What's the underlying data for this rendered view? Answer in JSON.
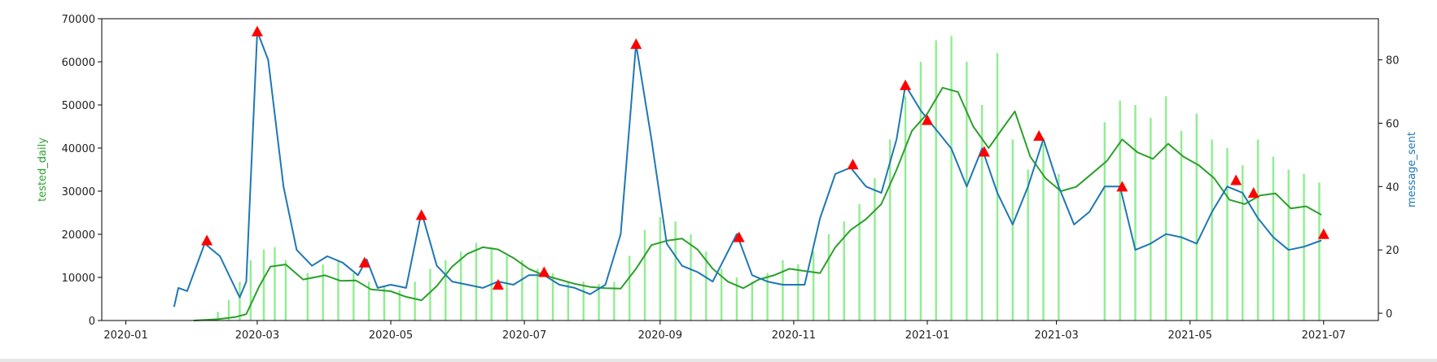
{
  "chart_data": {
    "type": "bar+line",
    "title": "",
    "ylabel_left": "tested_daily",
    "ylabel_right": "message_sent",
    "xlim": [
      "2019-12-21",
      "2021-07-26"
    ],
    "ylim_left": [
      0,
      70000
    ],
    "ylim_right": [
      -2.3,
      93
    ],
    "y_ticks_left": [
      0,
      10000,
      20000,
      30000,
      40000,
      50000,
      60000,
      70000
    ],
    "y_ticks_right": [
      0,
      20,
      40,
      60,
      80
    ],
    "x_ticks": [
      {
        "label": "2020-01",
        "date": "2020-01-01"
      },
      {
        "label": "2020-03",
        "date": "2020-03-01"
      },
      {
        "label": "2020-05",
        "date": "2020-05-01"
      },
      {
        "label": "2020-07",
        "date": "2020-07-01"
      },
      {
        "label": "2020-09",
        "date": "2020-09-01"
      },
      {
        "label": "2020-11",
        "date": "2020-11-01"
      },
      {
        "label": "2021-01",
        "date": "2021-01-01"
      },
      {
        "label": "2021-03",
        "date": "2021-03-01"
      },
      {
        "label": "2021-05",
        "date": "2021-05-01"
      },
      {
        "label": "2021-07",
        "date": "2021-07-01"
      }
    ],
    "colors": {
      "bars": "#90ee90",
      "tested_line": "#2ca02c",
      "message_line": "#1f77b4",
      "markers": "#ff0000",
      "left_label": "#2ca02c",
      "right_label": "#1f77b4"
    },
    "series": [
      {
        "kind": "bar",
        "axis": "left",
        "points": [
          [
            "2020-02-12",
            2000
          ],
          [
            "2020-02-17",
            4800
          ],
          [
            "2020-02-22",
            9000
          ],
          [
            "2020-02-27",
            14000
          ],
          [
            "2020-03-04",
            16500
          ],
          [
            "2020-03-09",
            17000
          ],
          [
            "2020-03-14",
            14000
          ],
          [
            "2020-03-24",
            11000
          ],
          [
            "2020-03-31",
            13000
          ],
          [
            "2020-04-07",
            14000
          ],
          [
            "2020-04-14",
            11000
          ],
          [
            "2020-04-21",
            9000
          ],
          [
            "2020-04-28",
            8000
          ],
          [
            "2020-05-05",
            7000
          ],
          [
            "2020-05-12",
            9000
          ],
          [
            "2020-05-19",
            12000
          ],
          [
            "2020-05-26",
            14000
          ],
          [
            "2020-06-02",
            16000
          ],
          [
            "2020-06-09",
            18000
          ],
          [
            "2020-06-16",
            17000
          ],
          [
            "2020-06-23",
            15000
          ],
          [
            "2020-06-30",
            14000
          ],
          [
            "2020-07-07",
            12000
          ],
          [
            "2020-07-14",
            11000
          ],
          [
            "2020-07-21",
            9000
          ],
          [
            "2020-07-28",
            9000
          ],
          [
            "2020-08-04",
            8500
          ],
          [
            "2020-08-11",
            9000
          ],
          [
            "2020-08-18",
            15000
          ],
          [
            "2020-08-25",
            21000
          ],
          [
            "2020-09-01",
            24000
          ],
          [
            "2020-09-08",
            23000
          ],
          [
            "2020-09-15",
            20000
          ],
          [
            "2020-09-22",
            16000
          ],
          [
            "2020-09-29",
            12000
          ],
          [
            "2020-10-06",
            10000
          ],
          [
            "2020-10-13",
            9000
          ],
          [
            "2020-10-20",
            11000
          ],
          [
            "2020-10-27",
            14000
          ],
          [
            "2020-11-03",
            13000
          ],
          [
            "2020-11-10",
            16000
          ],
          [
            "2020-11-17",
            20000
          ],
          [
            "2020-11-24",
            23000
          ],
          [
            "2020-12-01",
            27000
          ],
          [
            "2020-12-08",
            33000
          ],
          [
            "2020-12-15",
            42000
          ],
          [
            "2020-12-22",
            52000
          ],
          [
            "2020-12-29",
            60000
          ],
          [
            "2021-01-05",
            65000
          ],
          [
            "2021-01-12",
            66000
          ],
          [
            "2021-01-19",
            60000
          ],
          [
            "2021-01-26",
            50000
          ],
          [
            "2021-02-02",
            62000
          ],
          [
            "2021-02-09",
            42000
          ],
          [
            "2021-02-16",
            35000
          ],
          [
            "2021-02-23",
            41000
          ],
          [
            "2021-03-02",
            34000
          ],
          [
            "2021-03-23",
            46000
          ],
          [
            "2021-03-30",
            51000
          ],
          [
            "2021-04-06",
            50000
          ],
          [
            "2021-04-13",
            47000
          ],
          [
            "2021-04-20",
            52000
          ],
          [
            "2021-04-27",
            44000
          ],
          [
            "2021-05-04",
            48000
          ],
          [
            "2021-05-11",
            42000
          ],
          [
            "2021-05-18",
            40000
          ],
          [
            "2021-05-25",
            36000
          ],
          [
            "2021-06-01",
            42000
          ],
          [
            "2021-06-08",
            38000
          ],
          [
            "2021-06-15",
            35000
          ],
          [
            "2021-06-22",
            34000
          ],
          [
            "2021-06-29",
            32000
          ]
        ]
      },
      {
        "kind": "line",
        "axis": "left",
        "name": "tested_daily",
        "points": [
          [
            "2020-02-01",
            0
          ],
          [
            "2020-02-12",
            300
          ],
          [
            "2020-02-20",
            800
          ],
          [
            "2020-02-25",
            1500
          ],
          [
            "2020-03-02",
            8000
          ],
          [
            "2020-03-07",
            12500
          ],
          [
            "2020-03-14",
            13000
          ],
          [
            "2020-03-22",
            9500
          ],
          [
            "2020-04-01",
            10500
          ],
          [
            "2020-04-08",
            9200
          ],
          [
            "2020-04-15",
            9300
          ],
          [
            "2020-04-22",
            7200
          ],
          [
            "2020-05-01",
            6800
          ],
          [
            "2020-05-08",
            5500
          ],
          [
            "2020-05-15",
            4700
          ],
          [
            "2020-05-22",
            8000
          ],
          [
            "2020-05-29",
            12500
          ],
          [
            "2020-06-05",
            15500
          ],
          [
            "2020-06-12",
            17000
          ],
          [
            "2020-06-19",
            16500
          ],
          [
            "2020-06-26",
            14500
          ],
          [
            "2020-07-03",
            12000
          ],
          [
            "2020-07-10",
            10500
          ],
          [
            "2020-07-17",
            9500
          ],
          [
            "2020-07-24",
            8500
          ],
          [
            "2020-07-31",
            7800
          ],
          [
            "2020-08-07",
            7500
          ],
          [
            "2020-08-14",
            7400
          ],
          [
            "2020-08-21",
            12000
          ],
          [
            "2020-08-28",
            17500
          ],
          [
            "2020-09-04",
            18500
          ],
          [
            "2020-09-11",
            19000
          ],
          [
            "2020-09-18",
            16500
          ],
          [
            "2020-09-25",
            12000
          ],
          [
            "2020-10-02",
            9000
          ],
          [
            "2020-10-09",
            7500
          ],
          [
            "2020-10-16",
            9500
          ],
          [
            "2020-10-23",
            10500
          ],
          [
            "2020-10-30",
            12000
          ],
          [
            "2020-11-06",
            11500
          ],
          [
            "2020-11-13",
            11000
          ],
          [
            "2020-11-20",
            17000
          ],
          [
            "2020-11-27",
            21000
          ],
          [
            "2020-12-04",
            23500
          ],
          [
            "2020-12-11",
            27000
          ],
          [
            "2020-12-18",
            35000
          ],
          [
            "2020-12-25",
            44000
          ],
          [
            "2021-01-01",
            48000
          ],
          [
            "2021-01-08",
            54000
          ],
          [
            "2021-01-15",
            53000
          ],
          [
            "2021-01-22",
            45000
          ],
          [
            "2021-01-29",
            40000
          ],
          [
            "2021-02-05",
            45000
          ],
          [
            "2021-02-10",
            48500
          ],
          [
            "2021-02-17",
            38000
          ],
          [
            "2021-02-24",
            33000
          ],
          [
            "2021-03-03",
            30000
          ],
          [
            "2021-03-10",
            31000
          ],
          [
            "2021-03-17",
            34000
          ],
          [
            "2021-03-24",
            37000
          ],
          [
            "2021-03-31",
            42000
          ],
          [
            "2021-04-07",
            39000
          ],
          [
            "2021-04-14",
            37500
          ],
          [
            "2021-04-21",
            41000
          ],
          [
            "2021-04-28",
            38000
          ],
          [
            "2021-05-05",
            36000
          ],
          [
            "2021-05-12",
            33000
          ],
          [
            "2021-05-19",
            28000
          ],
          [
            "2021-05-26",
            27000
          ],
          [
            "2021-06-02",
            29000
          ],
          [
            "2021-06-09",
            29500
          ],
          [
            "2021-06-16",
            26000
          ],
          [
            "2021-06-23",
            26500
          ],
          [
            "2021-06-30",
            24500
          ]
        ]
      },
      {
        "kind": "line",
        "axis": "right",
        "name": "message_sent",
        "points": [
          [
            "2020-01-23",
            2
          ],
          [
            "2020-01-25",
            8
          ],
          [
            "2020-01-29",
            7
          ],
          [
            "2020-02-06",
            22
          ],
          [
            "2020-02-13",
            18
          ],
          [
            "2020-02-22",
            5
          ],
          [
            "2020-02-25",
            10
          ],
          [
            "2020-03-01",
            89
          ],
          [
            "2020-03-06",
            80
          ],
          [
            "2020-03-13",
            40
          ],
          [
            "2020-03-19",
            20
          ],
          [
            "2020-03-26",
            15
          ],
          [
            "2020-04-02",
            18
          ],
          [
            "2020-04-09",
            16
          ],
          [
            "2020-04-16",
            12
          ],
          [
            "2020-04-20",
            17
          ],
          [
            "2020-04-25",
            8
          ],
          [
            "2020-05-01",
            9
          ],
          [
            "2020-05-08",
            8
          ],
          [
            "2020-05-15",
            32
          ],
          [
            "2020-05-22",
            15
          ],
          [
            "2020-05-29",
            10
          ],
          [
            "2020-06-05",
            9
          ],
          [
            "2020-06-12",
            8
          ],
          [
            "2020-06-19",
            10
          ],
          [
            "2020-06-26",
            9
          ],
          [
            "2020-07-03",
            12
          ],
          [
            "2020-07-10",
            12
          ],
          [
            "2020-07-17",
            9
          ],
          [
            "2020-07-24",
            8
          ],
          [
            "2020-07-31",
            6
          ],
          [
            "2020-08-07",
            9
          ],
          [
            "2020-08-14",
            25
          ],
          [
            "2020-08-21",
            85
          ],
          [
            "2020-08-28",
            55
          ],
          [
            "2020-09-04",
            22
          ],
          [
            "2020-09-11",
            15
          ],
          [
            "2020-09-18",
            13
          ],
          [
            "2020-09-25",
            10
          ],
          [
            "2020-10-06",
            25
          ],
          [
            "2020-10-13",
            12
          ],
          [
            "2020-10-20",
            10
          ],
          [
            "2020-10-27",
            9
          ],
          [
            "2020-11-06",
            9
          ],
          [
            "2020-11-13",
            30
          ],
          [
            "2020-11-20",
            44
          ],
          [
            "2020-11-27",
            46
          ],
          [
            "2020-12-04",
            40
          ],
          [
            "2020-12-11",
            38
          ],
          [
            "2020-12-18",
            55
          ],
          [
            "2020-12-22",
            72
          ],
          [
            "2020-12-29",
            64
          ],
          [
            "2021-01-05",
            58
          ],
          [
            "2021-01-12",
            52
          ],
          [
            "2021-01-19",
            40
          ],
          [
            "2021-01-26",
            52
          ],
          [
            "2021-02-02",
            38
          ],
          [
            "2021-02-09",
            28
          ],
          [
            "2021-02-16",
            40
          ],
          [
            "2021-02-23",
            55
          ],
          [
            "2021-03-02",
            40
          ],
          [
            "2021-03-09",
            28
          ],
          [
            "2021-03-16",
            32
          ],
          [
            "2021-03-23",
            40
          ],
          [
            "2021-03-30",
            40
          ],
          [
            "2021-04-06",
            20
          ],
          [
            "2021-04-13",
            22
          ],
          [
            "2021-04-20",
            25
          ],
          [
            "2021-04-27",
            24
          ],
          [
            "2021-05-04",
            22
          ],
          [
            "2021-05-11",
            32
          ],
          [
            "2021-05-18",
            40
          ],
          [
            "2021-05-25",
            38
          ],
          [
            "2021-06-01",
            30
          ],
          [
            "2021-06-08",
            24
          ],
          [
            "2021-06-15",
            20
          ],
          [
            "2021-06-22",
            21
          ],
          [
            "2021-06-30",
            23
          ]
        ]
      },
      {
        "kind": "markers",
        "axis": "right",
        "marker": "triangle",
        "points": [
          [
            "2020-02-07",
            23
          ],
          [
            "2020-03-01",
            89
          ],
          [
            "2020-04-19",
            16
          ],
          [
            "2020-05-15",
            31
          ],
          [
            "2020-06-19",
            9
          ],
          [
            "2020-07-10",
            13
          ],
          [
            "2020-08-21",
            85
          ],
          [
            "2020-10-07",
            24
          ],
          [
            "2020-11-28",
            47
          ],
          [
            "2020-12-22",
            72
          ],
          [
            "2021-01-01",
            61
          ],
          [
            "2021-01-27",
            51
          ],
          [
            "2021-02-21",
            56
          ],
          [
            "2021-03-31",
            40
          ],
          [
            "2021-05-22",
            42
          ],
          [
            "2021-05-30",
            38
          ],
          [
            "2021-07-01",
            25
          ]
        ]
      }
    ]
  }
}
